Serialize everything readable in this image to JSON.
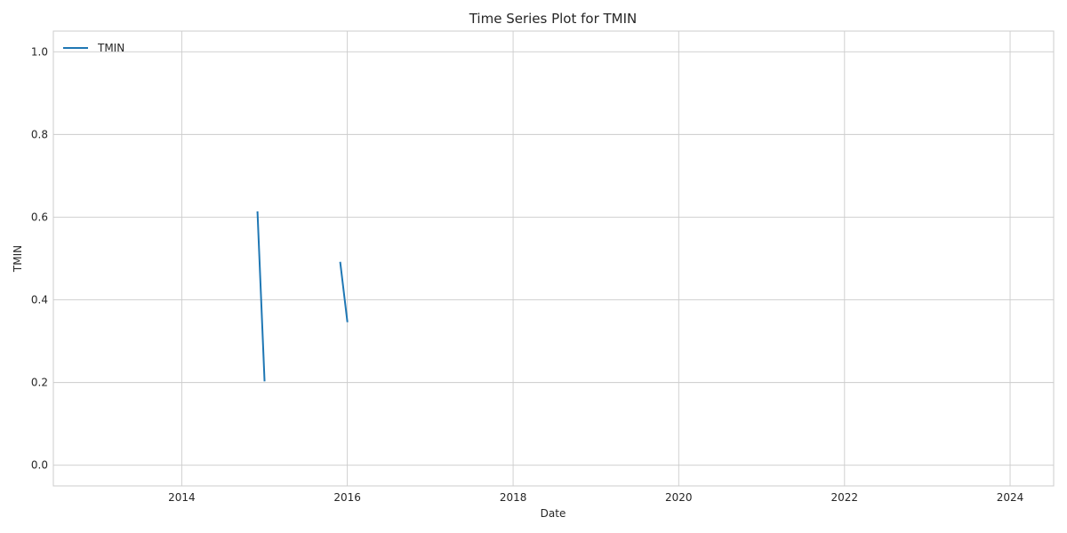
{
  "chart_data": {
    "type": "line",
    "title": "Time Series Plot for TMIN",
    "xlabel": "Date",
    "ylabel": "TMIN",
    "x_type": "date",
    "xlim": [
      "2012-06-14",
      "2024-07-11"
    ],
    "ylim": [
      -0.05,
      1.05
    ],
    "x_ticks": [
      "2014",
      "2016",
      "2018",
      "2020",
      "2022",
      "2024"
    ],
    "y_ticks": [
      "0.0",
      "0.2",
      "0.4",
      "0.6",
      "0.8",
      "1.0"
    ],
    "grid": true,
    "legend": {
      "placement": "top-left"
    },
    "series": [
      {
        "name": "TMIN",
        "color": "#1f77b4",
        "segments": [
          {
            "x": [
              "2014-12-01",
              "2015-01-01"
            ],
            "y": [
              0.612,
              0.205
            ]
          },
          {
            "x": [
              "2015-12-01",
              "2016-01-01"
            ],
            "y": [
              0.49,
              0.348
            ]
          }
        ]
      }
    ]
  }
}
